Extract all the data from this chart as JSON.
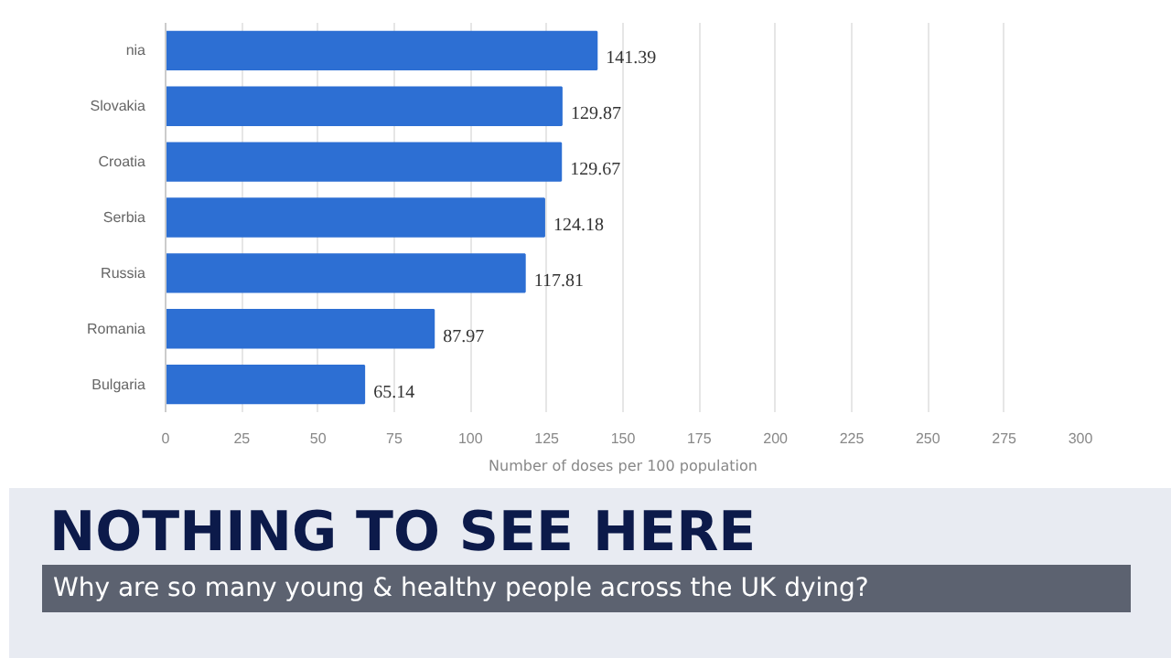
{
  "chart_data": {
    "type": "bar",
    "orientation": "horizontal",
    "categories": [
      "nia",
      "Slovakia",
      "Croatia",
      "Serbia",
      "Russia",
      "Romania",
      "Bulgaria"
    ],
    "values": [
      141.39,
      129.87,
      129.67,
      124.18,
      117.81,
      87.97,
      65.14
    ],
    "color": "#2d6fd3",
    "xlabel": "Number of doses per 100 population",
    "xlim": [
      0,
      300
    ],
    "xticks": [
      0,
      25,
      50,
      75,
      100,
      125,
      150,
      175,
      200,
      225,
      250,
      275,
      300
    ],
    "grid": "x",
    "data_labels": true,
    "annotations": [
      "NOTHING TO SEE HERE",
      "Why are so many young & healthy people across the UK dying?"
    ]
  }
}
